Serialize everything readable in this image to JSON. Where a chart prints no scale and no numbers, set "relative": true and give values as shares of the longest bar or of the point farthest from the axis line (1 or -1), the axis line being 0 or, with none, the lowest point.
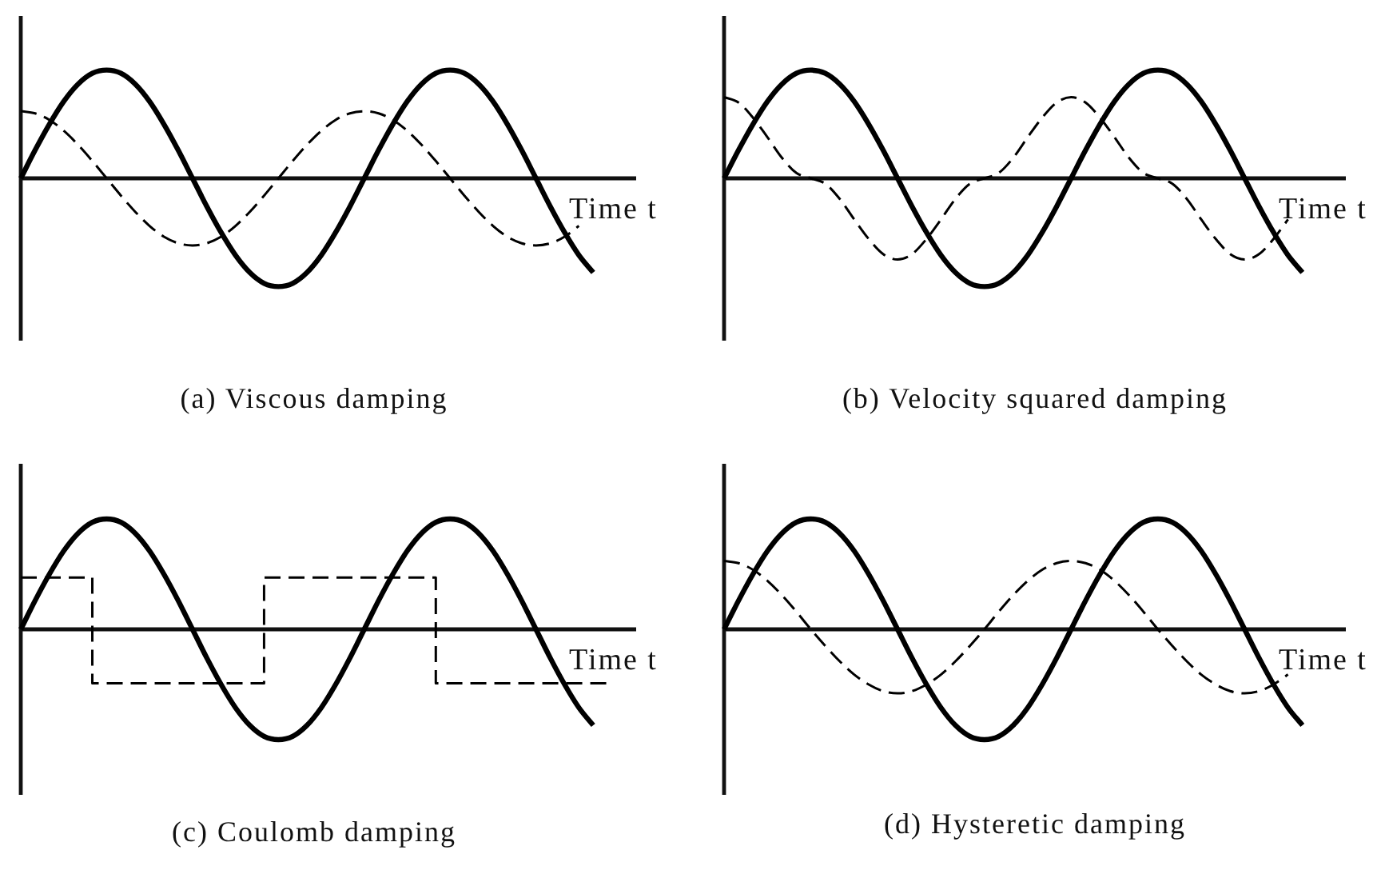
{
  "chart_data": [
    {
      "type": "line",
      "title": "(a) Viscous damping",
      "xlabel": "Time t",
      "relative": true,
      "marker": "none",
      "categories": [
        null,
        null,
        null,
        null,
        null,
        null,
        null,
        null,
        null,
        null,
        null,
        null,
        null,
        null,
        null,
        null,
        null,
        null,
        null,
        null,
        null,
        null,
        null,
        null,
        null,
        null,
        null,
        null,
        null,
        null,
        null,
        null,
        null,
        null,
        null,
        null,
        null,
        null,
        null,
        null,
        null,
        null,
        null,
        null
      ],
      "series": [
        {
          "color": "#000000",
          "line_style": "solid",
          "values": [
            0,
            0.26,
            0.5,
            0.71,
            0.87,
            0.97,
            1,
            0.97,
            0.87,
            0.71,
            0.5,
            0.26,
            0,
            -0.26,
            -0.5,
            -0.71,
            -0.87,
            -0.97,
            -1,
            -0.97,
            -0.87,
            -0.71,
            -0.5,
            -0.26,
            0,
            0.26,
            0.5,
            0.71,
            0.87,
            0.97,
            1,
            0.97,
            0.87,
            0.71,
            0.5,
            0.26,
            0,
            -0.26,
            -0.5,
            -0.71,
            -0.87,
            null,
            null,
            null
          ]
        },
        {
          "color": "#000000",
          "line_style": "dashed",
          "values": [
            0.62,
            0.6,
            0.54,
            0.44,
            0.31,
            0.16,
            0,
            -0.16,
            -0.31,
            -0.44,
            -0.54,
            -0.6,
            -0.62,
            -0.6,
            -0.54,
            -0.44,
            -0.31,
            -0.16,
            0,
            0.16,
            0.31,
            0.44,
            0.54,
            0.6,
            0.62,
            0.6,
            0.54,
            0.44,
            0.31,
            0.16,
            0,
            -0.16,
            -0.31,
            -0.44,
            -0.54,
            -0.6,
            -0.62,
            -0.6,
            -0.54,
            -0.44,
            null,
            null,
            null,
            null
          ]
        }
      ]
    },
    {
      "type": "line",
      "title": "(b) Velocity squared damping",
      "xlabel": "Time t",
      "relative": true,
      "marker": "none",
      "categories": [
        null,
        null,
        null,
        null,
        null,
        null,
        null,
        null,
        null,
        null,
        null,
        null,
        null,
        null,
        null,
        null,
        null,
        null,
        null,
        null,
        null,
        null,
        null,
        null,
        null,
        null,
        null,
        null,
        null,
        null,
        null,
        null,
        null,
        null,
        null,
        null,
        null,
        null,
        null,
        null,
        null,
        null,
        null,
        null
      ],
      "series": [
        {
          "color": "#000000",
          "line_style": "solid",
          "values": [
            0,
            0.26,
            0.5,
            0.71,
            0.87,
            0.97,
            1,
            0.97,
            0.87,
            0.71,
            0.5,
            0.26,
            0,
            -0.26,
            -0.5,
            -0.71,
            -0.87,
            -0.97,
            -1,
            -0.97,
            -0.87,
            -0.71,
            -0.5,
            -0.26,
            0,
            0.26,
            0.5,
            0.71,
            0.87,
            0.97,
            1,
            0.97,
            0.87,
            0.71,
            0.5,
            0.26,
            0,
            -0.26,
            -0.5,
            -0.71,
            -0.87,
            null,
            null,
            null
          ]
        },
        {
          "color": "#000000",
          "line_style": "dashed",
          "values": [
            0.75,
            0.7,
            0.56,
            0.38,
            0.19,
            0.05,
            0,
            -0.05,
            -0.19,
            -0.38,
            -0.56,
            -0.7,
            -0.75,
            -0.7,
            -0.56,
            -0.38,
            -0.19,
            -0.05,
            0,
            0.05,
            0.19,
            0.38,
            0.56,
            0.7,
            0.75,
            0.7,
            0.56,
            0.38,
            0.19,
            0.05,
            0,
            -0.05,
            -0.19,
            -0.38,
            -0.56,
            -0.7,
            -0.75,
            -0.7,
            -0.56,
            -0.38,
            null,
            null,
            null,
            null
          ]
        }
      ]
    },
    {
      "type": "line",
      "title": "(c) Coulomb damping",
      "xlabel": "Time t",
      "relative": true,
      "marker": "none",
      "categories": [
        null,
        null,
        null,
        null,
        null,
        null,
        null,
        null,
        null,
        null,
        null,
        null,
        null,
        null,
        null,
        null,
        null,
        null,
        null,
        null,
        null,
        null,
        null,
        null,
        null,
        null,
        null,
        null,
        null,
        null,
        null,
        null,
        null,
        null,
        null,
        null,
        null,
        null,
        null,
        null,
        null,
        null,
        null,
        null
      ],
      "series": [
        {
          "color": "#000000",
          "line_style": "solid",
          "values": [
            0,
            0.26,
            0.5,
            0.71,
            0.87,
            0.97,
            1,
            0.97,
            0.87,
            0.71,
            0.5,
            0.26,
            0,
            -0.26,
            -0.5,
            -0.71,
            -0.87,
            -0.97,
            -1,
            -0.97,
            -0.87,
            -0.71,
            -0.5,
            -0.26,
            0,
            0.26,
            0.5,
            0.71,
            0.87,
            0.97,
            1,
            0.97,
            0.87,
            0.71,
            0.5,
            0.26,
            0,
            -0.26,
            -0.5,
            -0.71,
            -0.87,
            null,
            null,
            null
          ]
        },
        {
          "type": "step",
          "color": "#000000",
          "line_style": "dashed",
          "values": [
            0.47,
            0.47,
            0.47,
            0.47,
            0.47,
            0.47,
            -0.49,
            -0.49,
            -0.49,
            -0.49,
            -0.49,
            -0.49,
            -0.49,
            -0.49,
            -0.49,
            -0.49,
            -0.49,
            -0.49,
            0.47,
            0.47,
            0.47,
            0.47,
            0.47,
            0.47,
            0.47,
            0.47,
            0.47,
            0.47,
            0.47,
            0.47,
            -0.49,
            -0.49,
            -0.49,
            -0.49,
            -0.49,
            -0.49,
            -0.49,
            -0.49,
            -0.49,
            -0.49,
            -0.49,
            -0.49,
            null,
            null
          ]
        }
      ]
    },
    {
      "type": "line",
      "title": "(d) Hysteretic damping",
      "xlabel": "Time t",
      "relative": true,
      "marker": "none",
      "categories": [
        null,
        null,
        null,
        null,
        null,
        null,
        null,
        null,
        null,
        null,
        null,
        null,
        null,
        null,
        null,
        null,
        null,
        null,
        null,
        null,
        null,
        null,
        null,
        null,
        null,
        null,
        null,
        null,
        null,
        null,
        null,
        null,
        null,
        null,
        null,
        null,
        null,
        null,
        null,
        null,
        null,
        null,
        null,
        null
      ],
      "series": [
        {
          "color": "#000000",
          "line_style": "solid",
          "values": [
            0,
            0.26,
            0.5,
            0.71,
            0.87,
            0.97,
            1,
            0.97,
            0.87,
            0.71,
            0.5,
            0.26,
            0,
            -0.26,
            -0.5,
            -0.71,
            -0.87,
            -0.97,
            -1,
            -0.97,
            -0.87,
            -0.71,
            -0.5,
            -0.26,
            0,
            0.26,
            0.5,
            0.71,
            0.87,
            0.97,
            1,
            0.97,
            0.87,
            0.71,
            0.5,
            0.26,
            0,
            -0.26,
            -0.5,
            -0.71,
            -0.87,
            null,
            null,
            null
          ]
        },
        {
          "color": "#000000",
          "line_style": "dashed",
          "values": [
            0.62,
            0.6,
            0.54,
            0.44,
            0.31,
            0.16,
            0,
            -0.15,
            -0.29,
            -0.41,
            -0.5,
            -0.56,
            -0.58,
            -0.56,
            -0.5,
            -0.41,
            -0.29,
            -0.15,
            0,
            0.16,
            0.31,
            0.44,
            0.54,
            0.6,
            0.62,
            0.6,
            0.54,
            0.44,
            0.31,
            0.16,
            0,
            -0.15,
            -0.29,
            -0.41,
            -0.5,
            -0.56,
            -0.58,
            -0.56,
            -0.5,
            -0.41,
            null,
            null,
            null,
            null
          ]
        }
      ]
    }
  ]
}
